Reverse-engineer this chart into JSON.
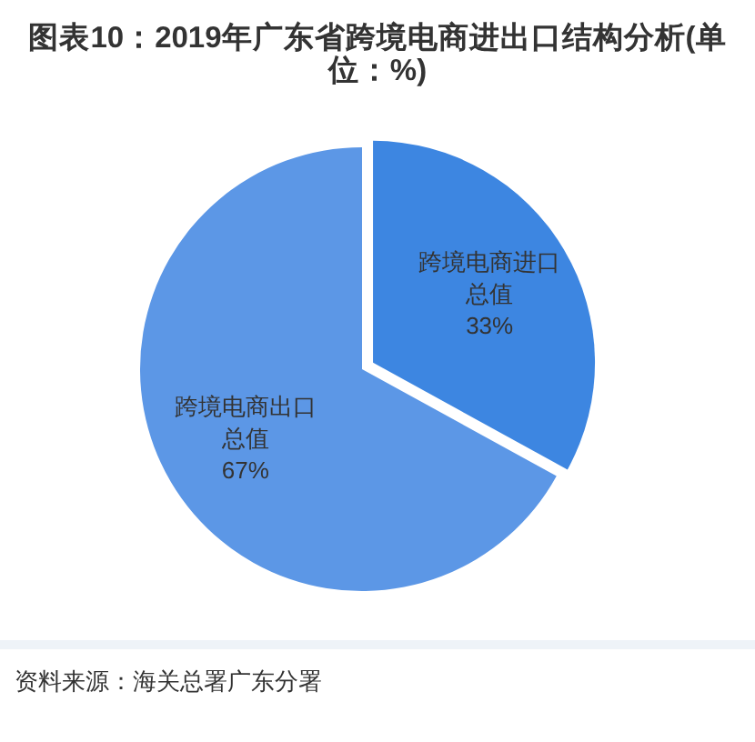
{
  "chart_data": {
    "type": "pie",
    "title": "图表10：2019年广东省跨境电商进出口结构分析(单位：%)",
    "categories": [
      "跨境电商进口总值",
      "跨境电商出口总值"
    ],
    "values": [
      33,
      67
    ],
    "value_labels": [
      "33%",
      "67%"
    ],
    "colors": [
      "#3d86e1",
      "#5c97e6"
    ],
    "annotations": [
      "资料来源：海关总署广东分署"
    ]
  }
}
